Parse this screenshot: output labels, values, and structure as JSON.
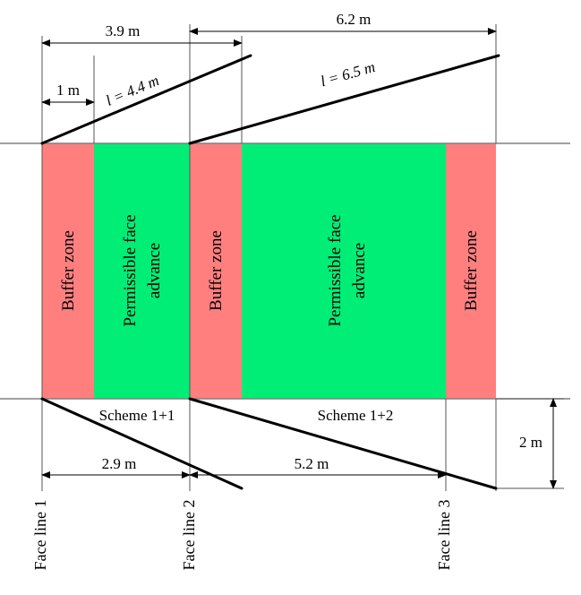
{
  "diagram": {
    "top_dimensions": {
      "span_1": "3.9 m",
      "span_2": "6.2 m",
      "small": "1 m"
    },
    "inclined_lengths": {
      "first": "l = 4.4 m",
      "second": "l = 6.5 m"
    },
    "zones": {
      "buffer_1": "Buffer zone",
      "advance_1_line1": "Permissible face",
      "advance_1_line2": "advance",
      "buffer_2": "Buffer zone",
      "advance_2_line1": "Permissible face",
      "advance_2_line2": "advance",
      "buffer_3": "Buffer zone"
    },
    "schemes": {
      "first": "Scheme 1+1",
      "second": "Scheme 1+2"
    },
    "bottom_dimensions": {
      "span_1": "2.9 m",
      "span_2": "5.2 m",
      "height": "2 m"
    },
    "face_lines": {
      "line_1": "Face line 1",
      "line_2": "Face line 2",
      "line_3": "Face line 3"
    },
    "colors": {
      "buffer": "#FF7F7F",
      "advance": "#00EE76",
      "line": "#000000",
      "band_edge": "#808080"
    }
  }
}
